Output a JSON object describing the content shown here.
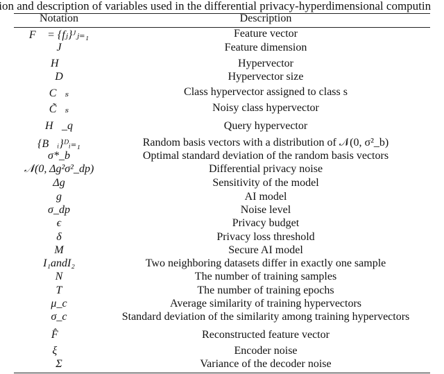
{
  "caption": "ation and description of variables used in the differential privacy-hyperdimensional computin",
  "header": {
    "notation": "Notation",
    "description": "Description"
  },
  "rows": [
    {
      "notation": "F⃗ = {fⱼ}ᴶⱼ₌₁",
      "description": "Feature vector"
    },
    {
      "notation": "J",
      "description": "Feature dimension"
    },
    {
      "notation": "H⃗",
      "description": "Hypervector"
    },
    {
      "notation": "D",
      "description": "Hypervector size"
    },
    {
      "notation": "C⃗ₛ",
      "description": "Class hypervector assigned to class s"
    },
    {
      "notation": "C̃⃗ₛ",
      "description": "Noisy class hypervector"
    },
    {
      "notation": "H⃗_q",
      "description": "Query hypervector"
    },
    {
      "notation": "{B⃗ᵢ}ᴰᵢ₌₁",
      "description": "Random basis vectors with a distribution of 𝒩(0, σ²_b)"
    },
    {
      "notation": "σ*_b",
      "description": "Optimal standard deviation of the random basis vectors"
    },
    {
      "notation": "𝒩(0, Δg²σ²_dp)",
      "description": "Differential privacy noise"
    },
    {
      "notation": "Δg",
      "description": "Sensitivity of the model"
    },
    {
      "notation": "g",
      "description": "AI model"
    },
    {
      "notation": "σ_dp",
      "description": "Noise level"
    },
    {
      "notation": "ϵ",
      "description": "Privacy budget"
    },
    {
      "notation": "δ",
      "description": "Privacy loss threshold"
    },
    {
      "notation": "M",
      "description": "Secure AI model"
    },
    {
      "notation": "I₁andI₂",
      "description": "Two neighboring datasets differ in exactly one sample"
    },
    {
      "notation": "N",
      "description": "The number of training samples"
    },
    {
      "notation": "T",
      "description": "The number of training epochs"
    },
    {
      "notation": "μ_c",
      "description": "Average similarity of training hypervectors"
    },
    {
      "notation": "σ_c",
      "description": "Standard deviation of the similarity among training hypervectors"
    },
    {
      "notation": "F̂⃗",
      "description": "Reconstructed feature vector"
    },
    {
      "notation": "ξ⃗",
      "description": "Encoder noise"
    },
    {
      "notation": "Σ",
      "description": "Variance of the decoder noise"
    }
  ]
}
